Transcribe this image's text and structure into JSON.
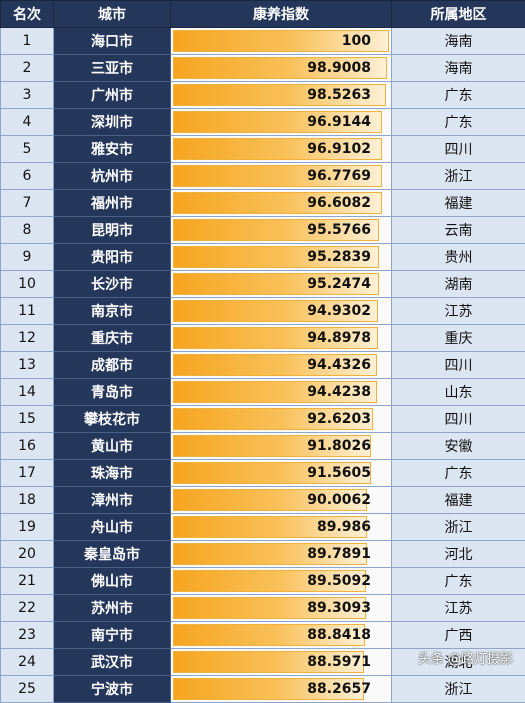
{
  "headers": {
    "rank": "名次",
    "city": "城市",
    "index": "康养指数",
    "region": "所属地区"
  },
  "rows": [
    {
      "rank": "1",
      "city": "海口市",
      "index": "100",
      "region": "海南"
    },
    {
      "rank": "2",
      "city": "三亚市",
      "index": "98.9008",
      "region": "海南"
    },
    {
      "rank": "3",
      "city": "广州市",
      "index": "98.5263",
      "region": "广东"
    },
    {
      "rank": "4",
      "city": "深圳市",
      "index": "96.9144",
      "region": "广东"
    },
    {
      "rank": "5",
      "city": "雅安市",
      "index": "96.9102",
      "region": "四川"
    },
    {
      "rank": "6",
      "city": "杭州市",
      "index": "96.7769",
      "region": "浙江"
    },
    {
      "rank": "7",
      "city": "福州市",
      "index": "96.6082",
      "region": "福建"
    },
    {
      "rank": "8",
      "city": "昆明市",
      "index": "95.5766",
      "region": "云南"
    },
    {
      "rank": "9",
      "city": "贵阳市",
      "index": "95.2839",
      "region": "贵州"
    },
    {
      "rank": "10",
      "city": "长沙市",
      "index": "95.2474",
      "region": "湖南"
    },
    {
      "rank": "11",
      "city": "南京市",
      "index": "94.9302",
      "region": "江苏"
    },
    {
      "rank": "12",
      "city": "重庆市",
      "index": "94.8978",
      "region": "重庆"
    },
    {
      "rank": "13",
      "city": "成都市",
      "index": "94.4326",
      "region": "四川"
    },
    {
      "rank": "14",
      "city": "青岛市",
      "index": "94.4238",
      "region": "山东"
    },
    {
      "rank": "15",
      "city": "攀枝花市",
      "index": "92.6203",
      "region": "四川"
    },
    {
      "rank": "16",
      "city": "黄山市",
      "index": "91.8026",
      "region": "安徽"
    },
    {
      "rank": "17",
      "city": "珠海市",
      "index": "91.5605",
      "region": "广东"
    },
    {
      "rank": "18",
      "city": "漳州市",
      "index": "90.0062",
      "region": "福建"
    },
    {
      "rank": "19",
      "city": "舟山市",
      "index": "89.986",
      "region": "浙江"
    },
    {
      "rank": "20",
      "city": "秦皇岛市",
      "index": "89.7891",
      "region": "河北"
    },
    {
      "rank": "21",
      "city": "佛山市",
      "index": "89.5092",
      "region": "广东"
    },
    {
      "rank": "22",
      "city": "苏州市",
      "index": "89.3093",
      "region": "江苏"
    },
    {
      "rank": "23",
      "city": "南宁市",
      "index": "88.8418",
      "region": "广西"
    },
    {
      "rank": "24",
      "city": "武汉市",
      "index": "88.5971",
      "region": "湖北"
    },
    {
      "rank": "25",
      "city": "宁波市",
      "index": "88.2657",
      "region": "浙江"
    }
  ],
  "bar_max": 100,
  "colors": {
    "header_bg": "#24375b",
    "city_bg": "#24375b",
    "cell_bg": "#dce6f3",
    "bar": "#f6a51f"
  },
  "watermark": "头条 @路灯摄影"
}
